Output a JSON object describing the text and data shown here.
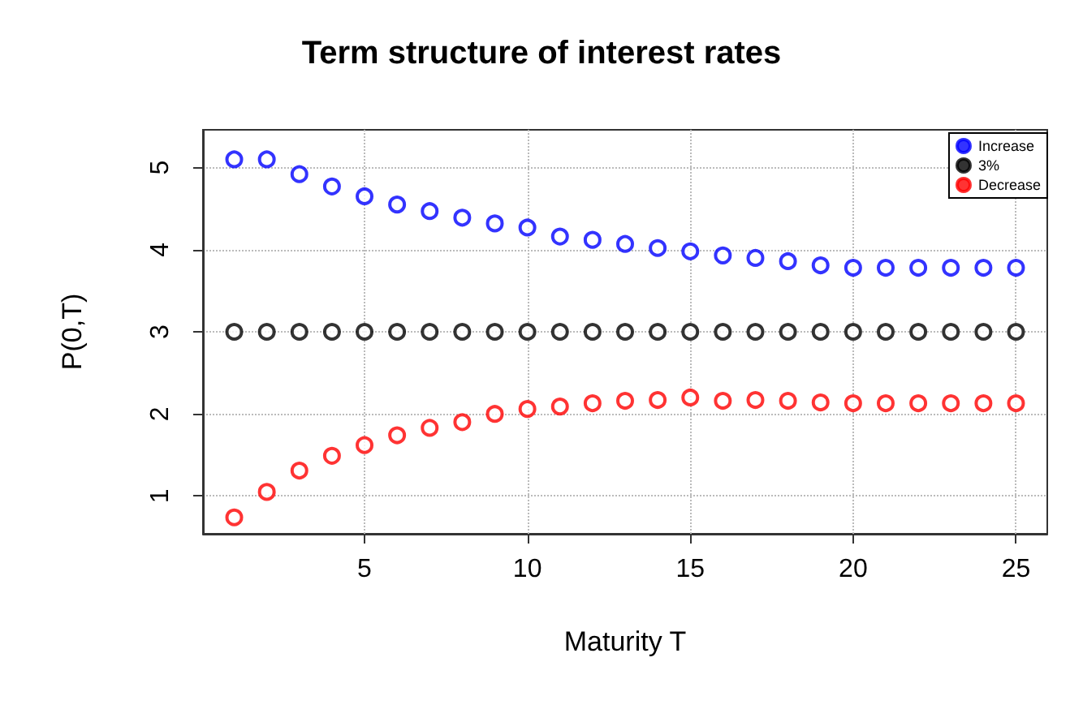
{
  "chart_data": {
    "type": "scatter",
    "title": "Term structure of interest rates",
    "xlabel": "Maturity T",
    "ylabel": "P(0,T)",
    "x": [
      1,
      2,
      3,
      4,
      5,
      6,
      7,
      8,
      9,
      10,
      11,
      12,
      13,
      14,
      15,
      16,
      17,
      18,
      19,
      20,
      21,
      22,
      23,
      24,
      25
    ],
    "series": [
      {
        "name": "Increase",
        "color": "#0000ff",
        "values": [
          5.1,
          5.1,
          4.92,
          4.77,
          4.65,
          4.55,
          4.47,
          4.39,
          4.32,
          4.27,
          4.16,
          4.12,
          4.07,
          4.02,
          3.98,
          3.93,
          3.9,
          3.86,
          3.81,
          3.78,
          3.78,
          3.78,
          3.78,
          3.78,
          3.78
        ]
      },
      {
        "name": "3%",
        "color": "#000000",
        "values": [
          3,
          3,
          3,
          3,
          3,
          3,
          3,
          3,
          3,
          3,
          3,
          3,
          3,
          3,
          3,
          3,
          3,
          3,
          3,
          3,
          3,
          3,
          3,
          3,
          3
        ]
      },
      {
        "name": "Decrease",
        "color": "#ff0000",
        "values": [
          0.74,
          1.05,
          1.31,
          1.49,
          1.62,
          1.74,
          1.83,
          1.9,
          2.0,
          2.06,
          2.09,
          2.13,
          2.16,
          2.17,
          2.2,
          2.16,
          2.17,
          2.16,
          2.14,
          2.13,
          2.13,
          2.13,
          2.13,
          2.13,
          2.13
        ]
      }
    ],
    "xlim": [
      0.04,
      25.96
    ],
    "ylim": [
      0.54,
      5.46
    ],
    "xticks": [
      5,
      10,
      15,
      20,
      25
    ],
    "yticks": [
      1,
      2,
      3,
      4,
      5
    ],
    "grid": true,
    "legend": "top right",
    "marker": "circle"
  }
}
